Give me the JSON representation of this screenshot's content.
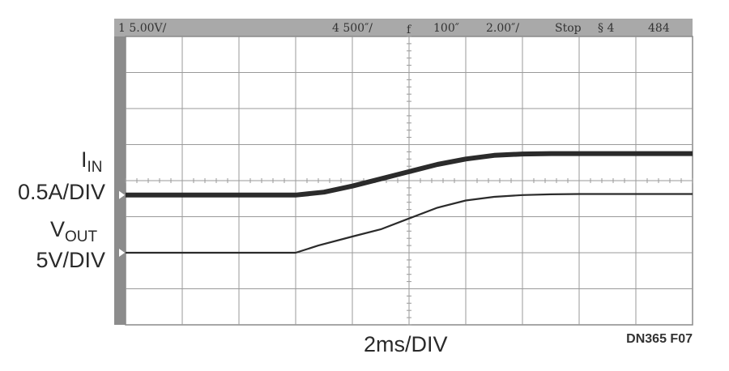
{
  "status_bar": {
    "ch1_scale": "1  5.00V/",
    "ch4_scale": "4  500″/",
    "trigger_marker": "f",
    "sample_rate": "100″",
    "timebase": "2.00″/",
    "run_state": "Stop",
    "trigger_source": "§ 4",
    "trigger_level": "484"
  },
  "labels": {
    "iin_main": "I",
    "iin_sub": "IN",
    "iin_scale": "0.5A/DIV",
    "vout_main": "V",
    "vout_sub": "OUT",
    "vout_scale": "5V/DIV",
    "time_scale": "2ms/DIV",
    "figure_code": "DN365 F07"
  },
  "chart_data": {
    "type": "line",
    "x_divisions": 10,
    "y_divisions": 8,
    "xlim": [
      0,
      10
    ],
    "ylim": [
      0,
      8
    ],
    "grid": true,
    "series": [
      {
        "name": "I_IN",
        "stroke": "thick",
        "x": [
          0,
          3.0,
          3.5,
          4.0,
          4.5,
          5.0,
          5.5,
          6.0,
          6.5,
          7.0,
          7.5,
          8.0,
          9.0,
          10.0
        ],
        "y": [
          3.6,
          3.6,
          3.68,
          3.85,
          4.05,
          4.25,
          4.45,
          4.6,
          4.7,
          4.74,
          4.75,
          4.75,
          4.75,
          4.75
        ]
      },
      {
        "name": "V_OUT",
        "stroke": "thin",
        "x": [
          0,
          3.0,
          3.4,
          4.0,
          4.5,
          5.0,
          5.5,
          6.0,
          6.5,
          7.0,
          7.5,
          8.0,
          9.0,
          10.0
        ],
        "y": [
          2.0,
          2.0,
          2.2,
          2.45,
          2.65,
          2.95,
          3.25,
          3.45,
          3.55,
          3.6,
          3.62,
          3.63,
          3.63,
          3.63
        ]
      }
    ],
    "colors": {
      "bezel": "#8c8c8c",
      "screen": "#ffffff",
      "grid": "#9a9a9a",
      "trace": "#2b2b2b"
    }
  }
}
